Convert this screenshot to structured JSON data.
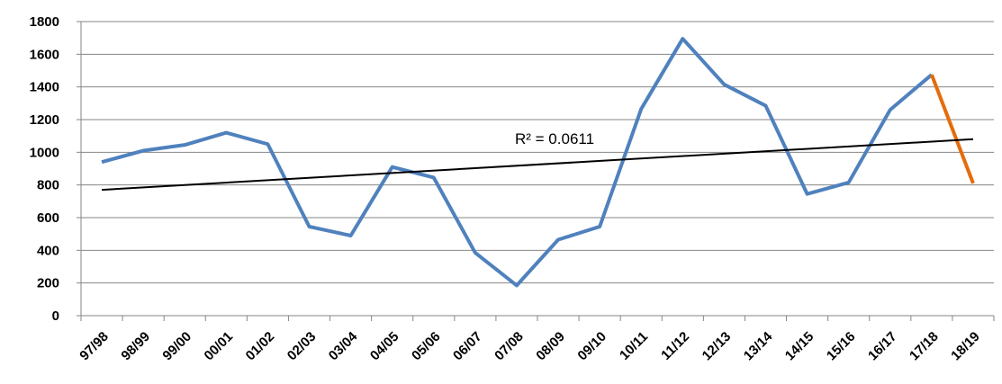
{
  "chart_data": {
    "type": "line",
    "categories": [
      "97/98",
      "98/99",
      "99/00",
      "00/01",
      "01/02",
      "02/03",
      "03/04",
      "04/05",
      "05/06",
      "06/07",
      "07/08",
      "08/09",
      "09/10",
      "10/11",
      "11/12",
      "12/13",
      "13/14",
      "14/15",
      "15/16",
      "16/17",
      "17/18",
      "18/19"
    ],
    "series": [
      {
        "color": "#4f81bd",
        "values": [
          940,
          1010,
          1045,
          1120,
          1050,
          545,
          490,
          910,
          845,
          385,
          185,
          465,
          545,
          1265,
          1695,
          1415,
          1285,
          745,
          815,
          1260,
          1475,
          null
        ]
      },
      {
        "color": "#e46c0a",
        "values": [
          null,
          null,
          null,
          null,
          null,
          null,
          null,
          null,
          null,
          null,
          null,
          null,
          null,
          null,
          null,
          null,
          null,
          null,
          null,
          null,
          1475,
          810
        ]
      }
    ],
    "trendline": {
      "start": 770,
      "end": 1080,
      "color": "#000000",
      "label": "R² = 0.0611"
    },
    "ylim": [
      0,
      1800
    ],
    "yticks": [
      0,
      200,
      400,
      600,
      800,
      1000,
      1200,
      1400,
      1600,
      1800
    ],
    "grid": true
  }
}
